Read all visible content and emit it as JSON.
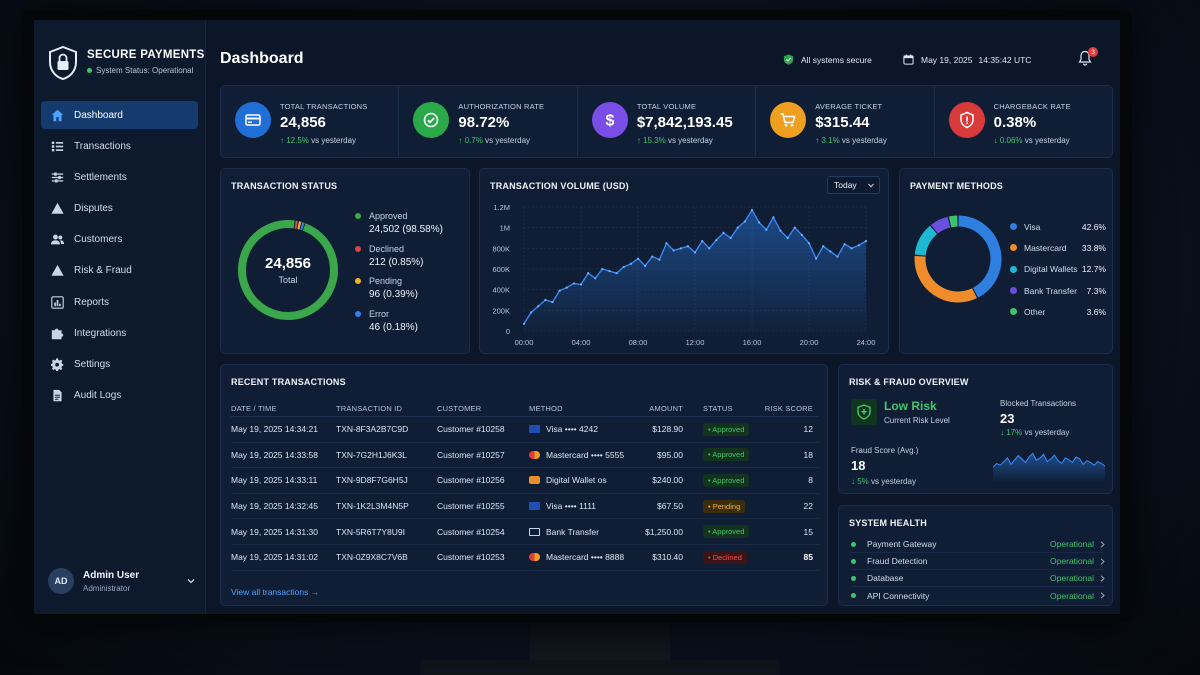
{
  "brand": {
    "title": "SECURE PAYMENTS",
    "status": "System Status: Operational"
  },
  "nav": [
    {
      "label": "Dashboard",
      "icon": "home-icon",
      "active": true
    },
    {
      "label": "Transactions",
      "icon": "list-icon"
    },
    {
      "label": "Settlements",
      "icon": "sliders-icon"
    },
    {
      "label": "Disputes",
      "icon": "warning-icon"
    },
    {
      "label": "Customers",
      "icon": "users-icon"
    },
    {
      "label": "Risk & Fraud",
      "icon": "alert-triangle-icon"
    },
    {
      "label": "Reports",
      "icon": "bar-chart-icon"
    },
    {
      "label": "Integrations",
      "icon": "puzzle-icon"
    },
    {
      "label": "Settings",
      "icon": "gear-icon"
    },
    {
      "label": "Audit Logs",
      "icon": "document-icon"
    }
  ],
  "user": {
    "initials": "AD",
    "name": "Admin User",
    "role": "Administrator"
  },
  "header": {
    "title": "Dashboard",
    "secure_label": "All systems secure",
    "date": "May 19, 2025",
    "time": "14:35:42 UTC",
    "notification_count": "3"
  },
  "kpis": [
    {
      "label": "TOTAL TRANSACTIONS",
      "value": "24,856",
      "change": "↑ 12.5%",
      "suffix": "vs yesterday",
      "color": "#1f6fd6",
      "icon": "card-icon"
    },
    {
      "label": "AUTHORIZATION RATE",
      "value": "98.72%",
      "change": "↑ 0.7%",
      "suffix": "vs yesterday",
      "color": "#2aa84a",
      "icon": "check-circle-icon"
    },
    {
      "label": "TOTAL VOLUME",
      "value": "$7,842,193.45",
      "change": "↑ 15.3%",
      "suffix": "vs yesterday",
      "color": "#7a4ee6",
      "icon": "dollar-icon"
    },
    {
      "label": "AVERAGE TICKET",
      "value": "$315.44",
      "change": "↑ 3.1%",
      "suffix": "vs yesterday",
      "color": "#f0a020",
      "icon": "cart-icon"
    },
    {
      "label": "CHARGEBACK RATE",
      "value": "0.38%",
      "change": "↓ 0.06%",
      "suffix": "vs yesterday",
      "color": "#d93b3b",
      "icon": "shield-alert-icon"
    }
  ],
  "transaction_status": {
    "title": "TRANSACTION STATUS",
    "center_value": "24,856",
    "center_label": "Total",
    "items": [
      {
        "name": "Approved",
        "value": "24,502 (98.58%)",
        "share": 98.58,
        "color": "#3aa84a"
      },
      {
        "name": "Declined",
        "value": "212 (0.85%)",
        "share": 0.85,
        "color": "#d94444"
      },
      {
        "name": "Pending",
        "value": "96 (0.39%)",
        "share": 0.39,
        "color": "#f0b429"
      },
      {
        "name": "Error",
        "value": "46 (0.18%)",
        "share": 0.18,
        "color": "#2f80ed"
      }
    ]
  },
  "volume": {
    "title": "TRANSACTION VOLUME (USD)",
    "range": "Today"
  },
  "payment_methods": {
    "title": "PAYMENT METHODS",
    "items": [
      {
        "name": "Visa",
        "pct": "42.6%",
        "share": 42.6,
        "color": "#2f7fe0"
      },
      {
        "name": "Mastercard",
        "pct": "33.8%",
        "share": 33.8,
        "color": "#f08c2a"
      },
      {
        "name": "Digital Wallets",
        "pct": "12.7%",
        "share": 12.7,
        "color": "#1fb8d3"
      },
      {
        "name": "Bank Transfer",
        "pct": "7.3%",
        "share": 7.3,
        "color": "#6a4ee0"
      },
      {
        "name": "Other",
        "pct": "3.6%",
        "share": 3.6,
        "color": "#3ec46d"
      }
    ]
  },
  "recent": {
    "title": "RECENT TRANSACTIONS",
    "columns": [
      "DATE / TIME",
      "TRANSACTION ID",
      "CUSTOMER",
      "METHOD",
      "AMOUNT",
      "STATUS",
      "RISK SCORE"
    ],
    "rows": [
      {
        "date": "May 19, 2025 14:34:21",
        "id": "TXN-8F3A2B7C9D",
        "customer": "Customer #10258",
        "method": "Visa •••• 4242",
        "method_type": "visa",
        "amount": "$128.90",
        "status": "• Approved",
        "status_type": "ok",
        "risk": "12"
      },
      {
        "date": "May 19, 2025 14:33:58",
        "id": "TXN-7G2H1J6K3L",
        "customer": "Customer #10257",
        "method": "Mastercard •••• 5555",
        "method_type": "mastercard",
        "amount": "$95.00",
        "status": "• Approved",
        "status_type": "ok",
        "risk": "18"
      },
      {
        "date": "May 19, 2025 14:33:11",
        "id": "TXN-9D8F7G6H5J",
        "customer": "Customer #10256",
        "method": "Digital Wallet os",
        "method_type": "wallet",
        "amount": "$240.00",
        "status": "• Approved",
        "status_type": "ok",
        "risk": "8"
      },
      {
        "date": "May 19, 2025 14:32:45",
        "id": "TXN-1K2L3M4N5P",
        "customer": "Customer #10255",
        "method": "Visa •••• 1111",
        "method_type": "visa",
        "amount": "$67.50",
        "status": "• Pending",
        "status_type": "pend",
        "risk": "22"
      },
      {
        "date": "May 19, 2025 14:31:30",
        "id": "TXN-5R6T7Y8U9I",
        "customer": "Customer #10254",
        "method": "Bank Transfer",
        "method_type": "bank",
        "amount": "$1,250.00",
        "status": "• Approved",
        "status_type": "ok",
        "risk": "15"
      },
      {
        "date": "May 19, 2025 14:31:02",
        "id": "TXN-0Z9X8C7V6B",
        "customer": "Customer #10253",
        "method": "Mastercard •••• 8888",
        "method_type": "mastercard",
        "amount": "$310.40",
        "status": "• Declined",
        "status_type": "dec",
        "risk": "85"
      }
    ],
    "view_all": "View all transactions →"
  },
  "risk": {
    "title": "RISK & FRAUD OVERVIEW",
    "level": "Low Risk",
    "level_sub": "Current Risk Level",
    "fraud_label": "Fraud Score (Avg.)",
    "fraud_value": "18",
    "fraud_change": "↓ 5%",
    "fraud_suffix": "vs yesterday",
    "blocked_label": "Blocked Transactions",
    "blocked_value": "23",
    "blocked_change": "↓ 17%",
    "blocked_suffix": "vs yesterday"
  },
  "health": {
    "title": "SYSTEM HEALTH",
    "items": [
      {
        "name": "Payment Gateway",
        "state": "Operational"
      },
      {
        "name": "Fraud Detection",
        "state": "Operational"
      },
      {
        "name": "Database",
        "state": "Operational"
      },
      {
        "name": "API Connectivity",
        "state": "Operational"
      }
    ]
  },
  "chart_data": [
    {
      "type": "line",
      "title": "TRANSACTION VOLUME (USD)",
      "x_ticks": [
        "00:00",
        "04:00",
        "08:00",
        "12:00",
        "16:00",
        "20:00",
        "24:00"
      ],
      "y_ticks": [
        "0",
        "200K",
        "400K",
        "600K",
        "800K",
        "1M",
        "1.2M"
      ],
      "ylim": [
        0,
        1200000
      ],
      "x": [
        0,
        0.5,
        1,
        1.5,
        2,
        2.5,
        3,
        3.5,
        4,
        4.5,
        5,
        5.5,
        6,
        6.5,
        7,
        7.5,
        8,
        8.5,
        9,
        9.5,
        10,
        10.5,
        11,
        11.5,
        12,
        12.5,
        13,
        13.5,
        14,
        14.5,
        15,
        15.5,
        16,
        16.5,
        17,
        17.5,
        18,
        18.5,
        19,
        19.5,
        20,
        20.5,
        21,
        21.5,
        22,
        22.5,
        23,
        23.5,
        24
      ],
      "values": [
        70000,
        180000,
        240000,
        300000,
        280000,
        390000,
        420000,
        460000,
        450000,
        560000,
        510000,
        600000,
        580000,
        560000,
        620000,
        650000,
        700000,
        630000,
        720000,
        690000,
        850000,
        780000,
        800000,
        820000,
        760000,
        870000,
        800000,
        880000,
        950000,
        900000,
        1000000,
        1060000,
        1170000,
        1050000,
        980000,
        1100000,
        970000,
        900000,
        1000000,
        930000,
        850000,
        700000,
        820000,
        770000,
        720000,
        840000,
        800000,
        830000,
        870000
      ],
      "grid": true,
      "area_fill": true
    },
    {
      "type": "pie",
      "title": "TRANSACTION STATUS",
      "categories": [
        "Approved",
        "Declined",
        "Pending",
        "Error"
      ],
      "values": [
        98.58,
        0.85,
        0.39,
        0.18
      ]
    },
    {
      "type": "pie",
      "title": "PAYMENT METHODS",
      "categories": [
        "Visa",
        "Mastercard",
        "Digital Wallets",
        "Bank Transfer",
        "Other"
      ],
      "values": [
        42.6,
        33.8,
        12.7,
        7.3,
        3.6
      ]
    },
    {
      "type": "area",
      "title": "",
      "values": [
        30,
        38,
        34,
        42,
        50,
        36,
        46,
        55,
        48,
        40,
        52,
        60,
        45,
        50,
        58,
        42,
        48,
        56,
        44,
        38,
        50,
        46,
        40,
        52,
        48,
        36,
        44,
        40,
        34,
        42,
        38,
        32
      ]
    }
  ]
}
